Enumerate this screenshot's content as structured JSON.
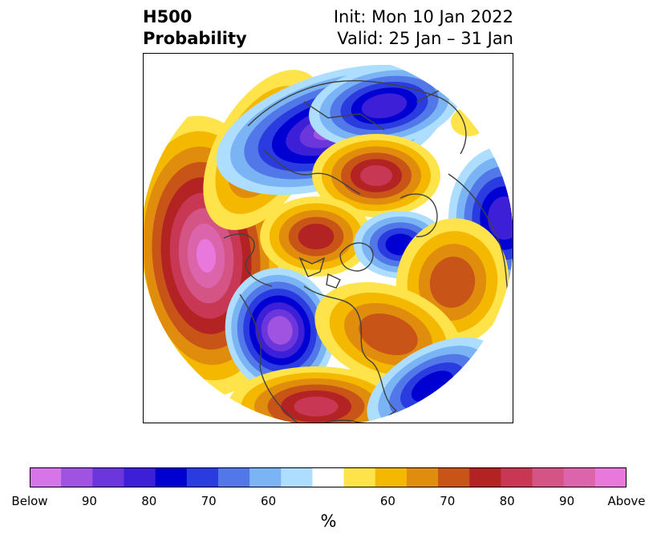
{
  "header": {
    "title_line1": "H500",
    "title_line2": "Probability",
    "init_text": "Init: Mon 10 Jan 2022",
    "valid_text": "Valid: 25 Jan – 31 Jan"
  },
  "map": {
    "projection": "north-polar-stereographic",
    "below_colors": [
      "#d774e8",
      "#a053e0",
      "#6b37dc",
      "#3c1fd6",
      "#0000d3",
      "#2a3cdf",
      "#5277e8",
      "#7ab4f4",
      "#addeff"
    ],
    "above_colors": [
      "#ffe34a",
      "#f5b800",
      "#e08c0c",
      "#c85418",
      "#b32323",
      "#c83753",
      "#d45485",
      "#dc64aa",
      "#e878dc"
    ],
    "land_outline_color": "#404040"
  },
  "colorbar": {
    "colors": [
      "#d774e8",
      "#a053e0",
      "#6b37dc",
      "#3c1fd6",
      "#0000d3",
      "#2a3cdf",
      "#5277e8",
      "#7ab4f4",
      "#addeff",
      "#ffffff",
      "#ffe34a",
      "#f5b800",
      "#e08c0c",
      "#c85418",
      "#b32323",
      "#c83753",
      "#d45485",
      "#dc64aa",
      "#e878dc"
    ],
    "tick_labels": [
      "Below",
      "90",
      "80",
      "70",
      "60",
      "",
      "60",
      "70",
      "80",
      "90",
      "Above"
    ],
    "unit_label": "%"
  }
}
